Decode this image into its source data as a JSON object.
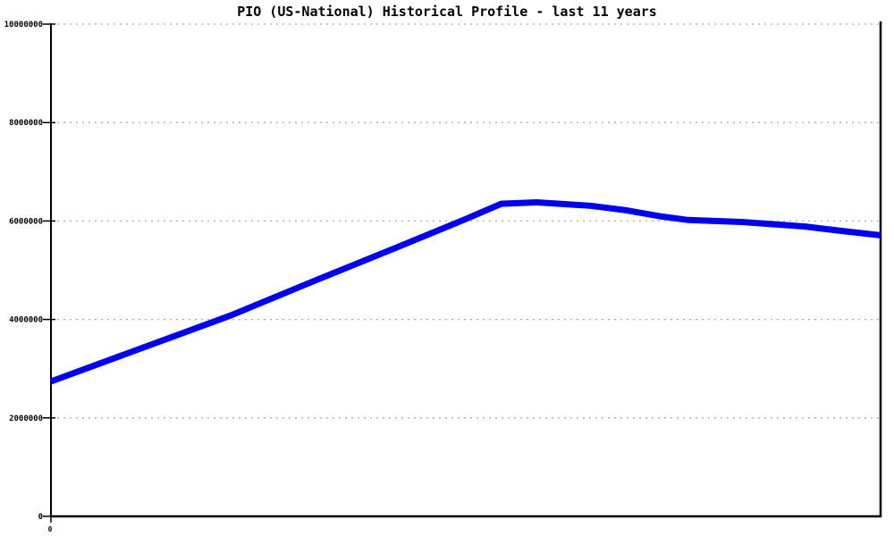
{
  "colors": {
    "line": "#0000ee",
    "grid": "#ababab",
    "axis": "#000000",
    "background": "#ffffff",
    "text": "#000000"
  },
  "chart_data": {
    "type": "line",
    "title": "PIO (US-National) Historical Profile - last 11 years",
    "xlabel": "",
    "ylabel": "",
    "xlim": [
      0,
      11
    ],
    "ylim": [
      0,
      10000000
    ],
    "y_ticks": [
      0,
      2000000,
      4000000,
      6000000,
      8000000,
      10000000
    ],
    "y_tick_labels": [
      "0",
      "2000000",
      "4000000",
      "6000000",
      "8000000",
      "10000000"
    ],
    "x_tick_labels": [
      "0"
    ],
    "grid": "horizontal-dotted",
    "legend_position": "none",
    "series": [
      {
        "name": "PIO (US-National)",
        "points": [
          {
            "x": 0.0,
            "y": 2740000
          },
          {
            "x": 1.1,
            "y": 3360000
          },
          {
            "x": 2.38,
            "y": 4080000
          },
          {
            "x": 3.47,
            "y": 4770000
          },
          {
            "x": 4.66,
            "y": 5510000
          },
          {
            "x": 5.5,
            "y": 6040000
          },
          {
            "x": 5.97,
            "y": 6350000
          },
          {
            "x": 6.44,
            "y": 6380000
          },
          {
            "x": 7.15,
            "y": 6310000
          },
          {
            "x": 7.62,
            "y": 6220000
          },
          {
            "x": 8.1,
            "y": 6090000
          },
          {
            "x": 8.45,
            "y": 6020000
          },
          {
            "x": 9.16,
            "y": 5980000
          },
          {
            "x": 9.99,
            "y": 5890000
          },
          {
            "x": 10.47,
            "y": 5800000
          },
          {
            "x": 11.0,
            "y": 5710000
          }
        ]
      }
    ]
  }
}
